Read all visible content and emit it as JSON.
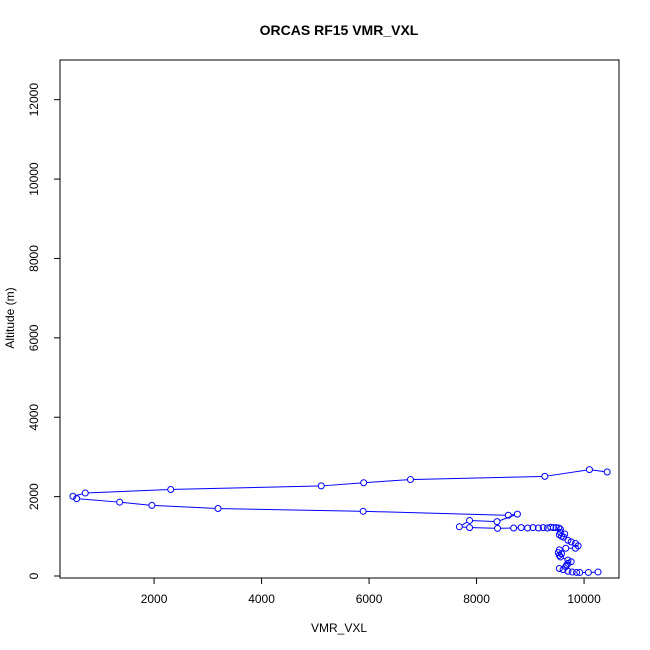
{
  "chart_data": {
    "type": "line",
    "title": "ORCAS RF15 VMR_VXL",
    "xlabel": "VMR_VXL",
    "ylabel": "Altitude (m)",
    "xlim": [
      250,
      10650
    ],
    "ylim": [
      -50,
      13000
    ],
    "xticks": [
      2000,
      4000,
      6000,
      8000,
      10000
    ],
    "yticks": [
      0,
      2000,
      4000,
      6000,
      8000,
      10000,
      12000
    ],
    "grid": false,
    "series": [
      {
        "color": "#0000ff",
        "markers": "open-circle",
        "points": [
          [
            10430,
            2620
          ],
          [
            10100,
            2680
          ],
          [
            9270,
            2510
          ],
          [
            6770,
            2430
          ],
          [
            5900,
            2350
          ],
          [
            5110,
            2270
          ],
          [
            2310,
            2180
          ],
          [
            720,
            2090
          ],
          [
            490,
            2010
          ],
          [
            560,
            1950
          ],
          [
            1360,
            1860
          ],
          [
            1960,
            1780
          ],
          [
            3190,
            1700
          ],
          [
            5890,
            1630
          ],
          [
            8590,
            1530
          ],
          [
            8760,
            1560
          ],
          [
            8380,
            1370
          ],
          [
            7870,
            1400
          ],
          [
            7680,
            1240
          ],
          [
            7870,
            1220
          ],
          [
            8390,
            1200
          ],
          [
            8690,
            1210
          ],
          [
            8830,
            1220
          ],
          [
            8950,
            1210
          ],
          [
            9050,
            1220
          ],
          [
            9150,
            1210
          ],
          [
            9240,
            1220
          ],
          [
            9320,
            1210
          ],
          [
            9380,
            1230
          ],
          [
            9430,
            1220
          ],
          [
            9480,
            1220
          ],
          [
            9530,
            1210
          ],
          [
            9560,
            1180
          ],
          [
            9560,
            1100
          ],
          [
            9540,
            1040
          ],
          [
            9580,
            1000
          ],
          [
            9620,
            980
          ],
          [
            9640,
            1060
          ],
          [
            9700,
            900
          ],
          [
            9760,
            860
          ],
          [
            9840,
            820
          ],
          [
            9890,
            760
          ],
          [
            9840,
            700
          ],
          [
            9660,
            700
          ],
          [
            9540,
            660
          ],
          [
            9520,
            590
          ],
          [
            9580,
            560
          ],
          [
            9540,
            520
          ],
          [
            9560,
            480
          ],
          [
            9700,
            400
          ],
          [
            9760,
            360
          ],
          [
            9700,
            320
          ],
          [
            9680,
            280
          ],
          [
            9660,
            240
          ],
          [
            9540,
            190
          ],
          [
            9610,
            160
          ],
          [
            9700,
            120
          ],
          [
            9780,
            100
          ],
          [
            9860,
            90
          ],
          [
            9920,
            90
          ],
          [
            10080,
            90
          ],
          [
            10260,
            100
          ]
        ]
      }
    ]
  }
}
